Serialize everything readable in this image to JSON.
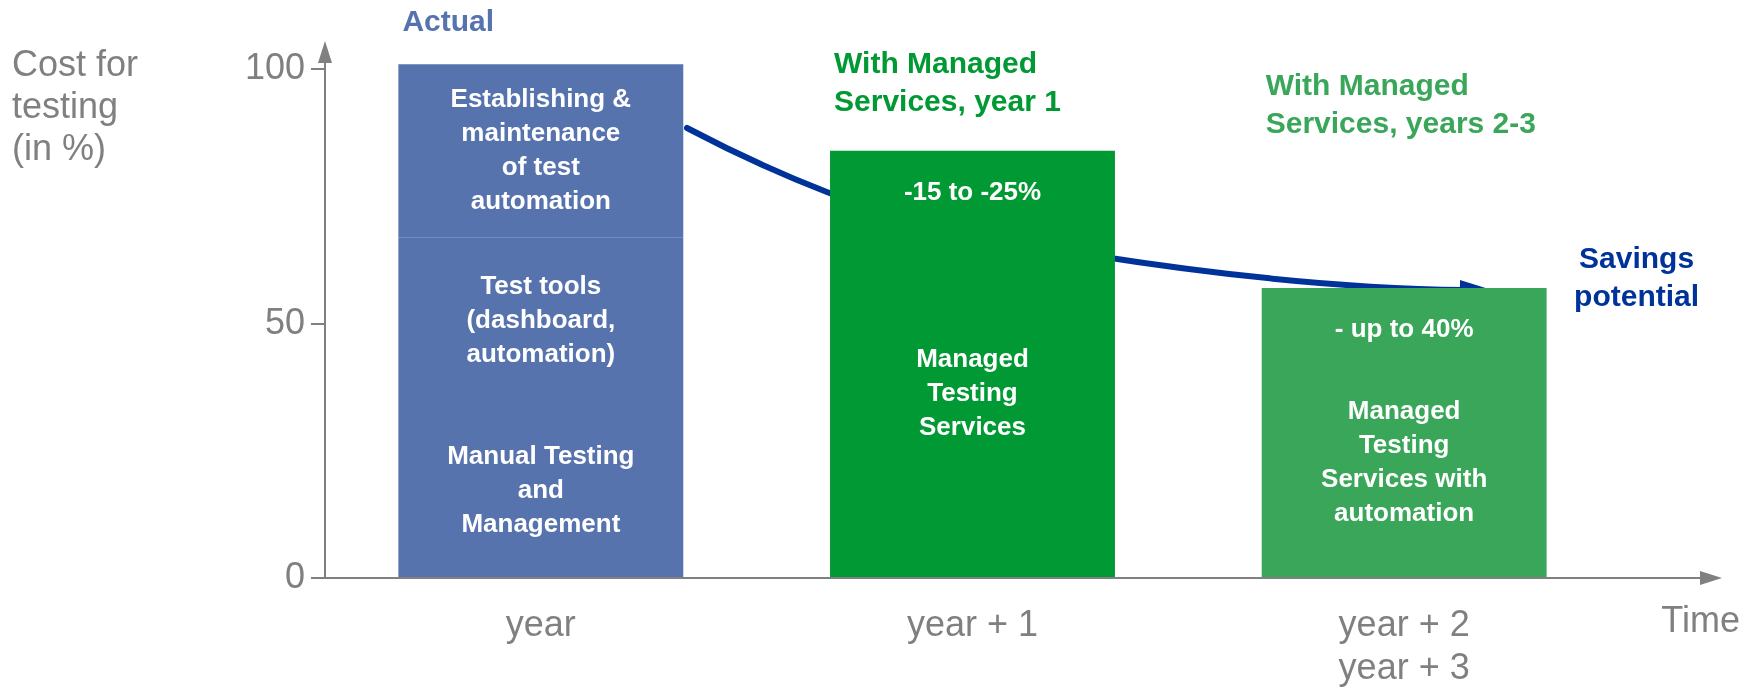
{
  "chart_data": {
    "type": "bar",
    "stacked": true,
    "ylabel": "Cost for testing (in %)",
    "xlabel": "Time",
    "categories": [
      "year",
      "year + 1",
      "year + 2\nyear + 3"
    ],
    "series": [
      {
        "name": "Manual Testing and Management",
        "color": "#5673ae",
        "values": [
          34,
          null,
          null
        ]
      },
      {
        "name": "Test tools (dashboard, automation)",
        "color": "#5673ae",
        "values": [
          33,
          null,
          null
        ]
      },
      {
        "name": "Establishing & maintenance of test automation",
        "color": "#5673ae",
        "values": [
          34,
          null,
          null
        ]
      },
      {
        "name": "Managed Testing Services",
        "color": "#009933",
        "values": [
          null,
          84,
          null
        ]
      },
      {
        "name": "Managed Testing Services with automation",
        "color": "#3aa65a",
        "values": [
          null,
          null,
          57
        ]
      }
    ],
    "ylim": [
      0,
      104
    ],
    "yticks": [
      0,
      50,
      100
    ],
    "grid": false,
    "legend": false,
    "annotations": [
      "Actual",
      "With Managed Services, year 1",
      "With Managed Services, years 2-3",
      "-15 to -25%",
      "- up to 40%",
      "Savings potential"
    ]
  }
}
